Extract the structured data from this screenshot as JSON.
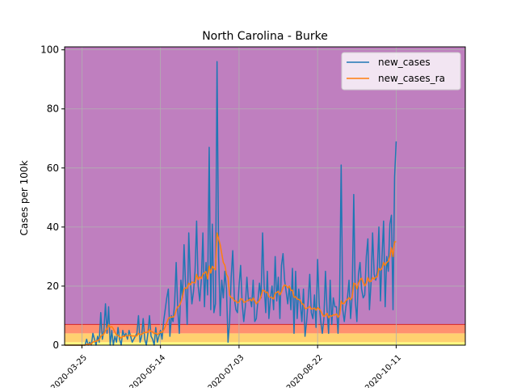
{
  "chart_data": {
    "type": "line",
    "title": "North Carolina - Burke",
    "xlabel": "",
    "ylabel": "Cases per 100k",
    "x_start": "2020-03-14",
    "x_end": "2020-11-21",
    "xlim": [
      "2020-03-14",
      "2020-11-24"
    ],
    "ylim": [
      0,
      101
    ],
    "y_ticks": [
      0,
      20,
      40,
      60,
      80,
      100
    ],
    "x_ticks": [
      "2020-03-25",
      "2020-05-14",
      "2020-07-03",
      "2020-08-22",
      "2020-10-11"
    ],
    "grid": true,
    "legend_position": "top-right",
    "background_bands": [
      {
        "from": 0,
        "to": 1,
        "color": "#ffff80"
      },
      {
        "from": 1,
        "to": 4,
        "color": "#ffd070"
      },
      {
        "from": 4,
        "to": 7,
        "color": "#ff9070"
      },
      {
        "from": 7,
        "to": 101,
        "color": "#bf7fbf"
      }
    ],
    "band_line": {
      "y": 7,
      "color": "#d62728"
    },
    "series": [
      {
        "name": "new_cases",
        "color": "#1f77b4",
        "values": [
          0,
          0,
          0,
          0,
          0,
          0,
          0,
          0,
          0,
          0,
          0,
          0,
          0,
          0,
          2,
          0,
          1,
          0,
          4,
          2,
          0,
          3,
          1,
          11,
          2,
          5,
          14,
          4,
          13,
          0,
          5,
          0,
          3,
          1,
          6,
          2,
          0,
          5,
          3,
          4,
          2,
          5,
          3,
          1,
          2,
          3,
          4,
          10,
          1,
          3,
          9,
          2,
          0,
          4,
          10,
          3,
          2,
          0,
          6,
          1,
          3,
          5,
          2,
          8,
          12,
          16,
          19,
          3,
          10,
          8,
          14,
          28,
          12,
          4,
          22,
          16,
          34,
          20,
          7,
          38,
          22,
          14,
          18,
          25,
          42,
          20,
          15,
          22,
          38,
          13,
          28,
          17,
          67,
          12,
          41,
          11,
          14,
          96,
          30,
          10,
          22,
          16,
          25,
          19,
          1,
          8,
          23,
          32,
          16,
          12,
          11,
          20,
          27,
          14,
          8,
          13,
          23,
          15,
          16,
          13,
          22,
          8,
          9,
          15,
          21,
          16,
          38,
          20,
          11,
          25,
          9,
          16,
          20,
          12,
          30,
          15,
          23,
          9,
          27,
          31,
          22,
          18,
          14,
          20,
          12,
          26,
          4,
          25,
          9,
          19,
          14,
          8,
          19,
          3,
          8,
          15,
          24,
          11,
          9,
          17,
          6,
          29,
          14,
          8,
          4,
          9,
          25,
          12,
          4,
          22,
          7,
          16,
          13,
          13,
          4,
          16,
          61,
          12,
          8,
          13,
          16,
          22,
          9,
          17,
          51,
          15,
          8,
          24,
          28,
          19,
          16,
          17,
          30,
          36,
          12,
          21,
          38,
          24,
          22,
          25,
          40,
          15,
          30,
          42,
          13,
          30,
          25,
          41,
          44,
          12,
          57,
          69
        ],
        "values_note": "daily values from x_start"
      },
      {
        "name": "new_cases_ra",
        "color": "#ff7f0e",
        "values": [
          0,
          0,
          0,
          0,
          0,
          0,
          0,
          0,
          0,
          0,
          0,
          0,
          0,
          0,
          0.3,
          0.3,
          0.4,
          0.4,
          1,
          1.2,
          1.3,
          1.6,
          1.8,
          3,
          3.4,
          3.8,
          5,
          5.4,
          7,
          6,
          6.3,
          5.6,
          4.4,
          3.5,
          3.3,
          2.8,
          2.4,
          3,
          2.9,
          3.3,
          3.1,
          3.3,
          3.3,
          3.1,
          3.1,
          3,
          3.2,
          4,
          3.5,
          3.7,
          4.1,
          4.3,
          4.3,
          4.4,
          5.3,
          4.6,
          4.5,
          3.9,
          4.1,
          3.6,
          3.9,
          4.4,
          4.3,
          5.1,
          6.2,
          7.6,
          9,
          9.4,
          9.5,
          9.5,
          10,
          11.8,
          13,
          13.3,
          14.6,
          16.3,
          19,
          19.4,
          19.2,
          21,
          20.4,
          21.4,
          21.2,
          21.1,
          24,
          22.2,
          23.2,
          22.5,
          24,
          24.5,
          24.9,
          22.4,
          26.8,
          24.4,
          26.7,
          26,
          25.5,
          38,
          36,
          34,
          31,
          28,
          27,
          24,
          23,
          17,
          16,
          16,
          15,
          15,
          14.3,
          14.6,
          15.7,
          15.6,
          14.5,
          14.6,
          15,
          15.2,
          15.6,
          15,
          16,
          15,
          14,
          14.6,
          15.2,
          16.4,
          18.6,
          18.5,
          17.8,
          18,
          16.4,
          16.2,
          16.1,
          15.6,
          17.6,
          17.8,
          18.3,
          17,
          18,
          19.6,
          20.4,
          20.1,
          19.4,
          20,
          18.5,
          18.6,
          16.2,
          16.4,
          15.6,
          15.5,
          15.2,
          14,
          13.9,
          12.4,
          12.4,
          12.8,
          13.1,
          12.2,
          12.3,
          12.6,
          11.8,
          12.7,
          12.3,
          11.6,
          10.5,
          9.7,
          10.2,
          10.8,
          9.3,
          10,
          9.8,
          10.3,
          10.2,
          10.6,
          9.4,
          10.2,
          15,
          14,
          14.2,
          15,
          15.5,
          16.1,
          15.4,
          16.3,
          21,
          20.8,
          19,
          21,
          22,
          22.7,
          21.3,
          20.1,
          21,
          22.9,
          21.5,
          21.6,
          22.9,
          22.3,
          23,
          23.2,
          26,
          25.4,
          26,
          28,
          27,
          28,
          28.4,
          30,
          33,
          30,
          35,
          35
        ]
      }
    ]
  }
}
